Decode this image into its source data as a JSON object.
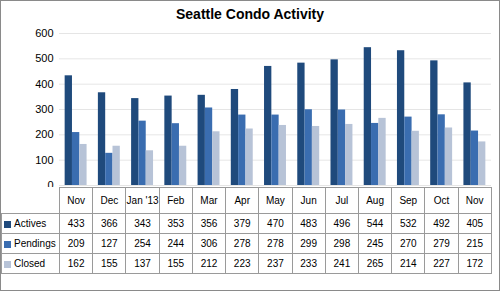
{
  "chart_data": {
    "type": "bar",
    "title": "Seattle Condo Activity",
    "categories": [
      "Nov",
      "Dec",
      "Jan '13",
      "Feb",
      "Mar",
      "Apr",
      "May",
      "Jun",
      "Jul",
      "Aug",
      "Sep",
      "Oct",
      "Nov"
    ],
    "series": [
      {
        "name": "Actives",
        "color": "#1f4a7c",
        "values": [
          433,
          366,
          343,
          353,
          356,
          379,
          470,
          483,
          496,
          544,
          532,
          492,
          405
        ]
      },
      {
        "name": "Pendings",
        "color": "#3a6db0",
        "values": [
          209,
          127,
          254,
          244,
          306,
          278,
          278,
          299,
          298,
          245,
          270,
          279,
          215
        ]
      },
      {
        "name": "Closed",
        "color": "#b7c3d7",
        "values": [
          162,
          155,
          137,
          155,
          212,
          223,
          237,
          233,
          241,
          265,
          214,
          227,
          172
        ]
      }
    ],
    "ylim": [
      0,
      600
    ],
    "yticks": [
      0,
      100,
      200,
      300,
      400,
      500,
      600
    ],
    "grid": true
  }
}
